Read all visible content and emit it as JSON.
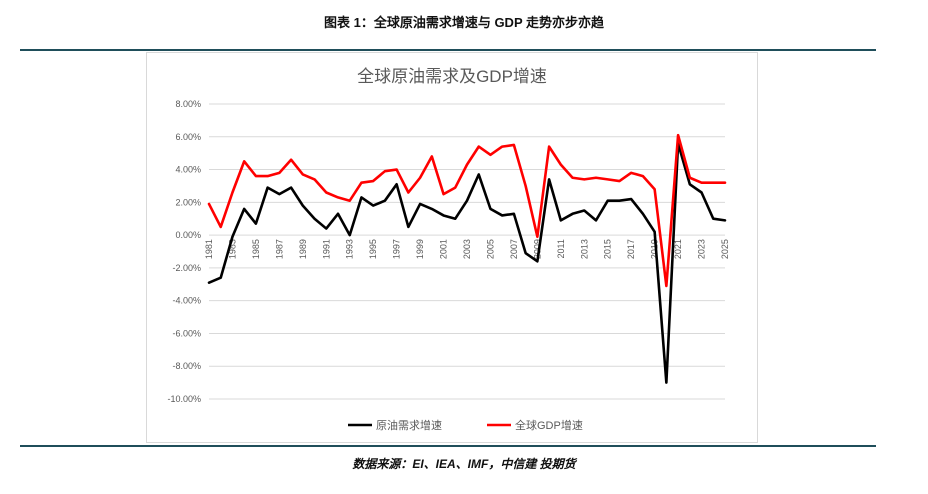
{
  "figure_title": "图表 1：全球原油需求增速与  GDP 走势亦步亦趋",
  "source": "数据来源：EI、IEA、IMF，中信建 投期货",
  "chart_data": {
    "type": "line",
    "title": "全球原油需求及GDP增速",
    "xlabel": "",
    "ylabel": "",
    "ylim": [
      -10,
      8
    ],
    "yticks": [
      "8.00%",
      "6.00%",
      "4.00%",
      "2.00%",
      "0.00%",
      "-2.00%",
      "-4.00%",
      "-6.00%",
      "-8.00%",
      "-10.00%"
    ],
    "ytick_values": [
      8,
      6,
      4,
      2,
      0,
      -2,
      -4,
      -6,
      -8,
      -10
    ],
    "x": [
      1981,
      1982,
      1983,
      1984,
      1985,
      1986,
      1987,
      1988,
      1989,
      1990,
      1991,
      1992,
      1993,
      1994,
      1995,
      1996,
      1997,
      1998,
      1999,
      2000,
      2001,
      2002,
      2003,
      2004,
      2005,
      2006,
      2007,
      2008,
      2009,
      2010,
      2011,
      2012,
      2013,
      2014,
      2015,
      2016,
      2017,
      2018,
      2019,
      2020,
      2021,
      2022,
      2023,
      2024,
      2025
    ],
    "xtick_labels": [
      "1981",
      "1983",
      "1985",
      "1987",
      "1989",
      "1991",
      "1993",
      "1995",
      "1997",
      "1999",
      "2001",
      "2003",
      "2005",
      "2007",
      "2009",
      "2011",
      "2013",
      "2015",
      "2017",
      "2019",
      "2021",
      "2023",
      "2025"
    ],
    "grid": true,
    "legend_position": "bottom",
    "series": [
      {
        "name": "原油需求增速",
        "color": "#000000",
        "values": [
          -2.9,
          -2.6,
          -0.1,
          1.6,
          0.7,
          2.9,
          2.5,
          2.9,
          1.8,
          1.0,
          0.4,
          1.3,
          0.0,
          2.3,
          1.8,
          2.1,
          3.1,
          0.5,
          1.9,
          1.6,
          1.2,
          1.0,
          2.1,
          3.7,
          1.6,
          1.2,
          1.3,
          -1.1,
          -1.6,
          3.4,
          0.9,
          1.3,
          1.5,
          0.9,
          2.1,
          2.1,
          2.2,
          1.3,
          0.2,
          -9.0,
          5.6,
          3.1,
          2.6,
          1.0,
          0.9
        ]
      },
      {
        "name": "全球GDP增速",
        "color": "#ff0000",
        "values": [
          1.9,
          0.5,
          2.6,
          4.5,
          3.6,
          3.6,
          3.8,
          4.6,
          3.7,
          3.4,
          2.6,
          2.3,
          2.1,
          3.2,
          3.3,
          3.9,
          4.0,
          2.6,
          3.5,
          4.8,
          2.5,
          2.9,
          4.3,
          5.4,
          4.9,
          5.4,
          5.5,
          3.0,
          -0.1,
          5.4,
          4.3,
          3.5,
          3.4,
          3.5,
          3.4,
          3.3,
          3.8,
          3.6,
          2.8,
          -3.1,
          6.1,
          3.5,
          3.2,
          3.2,
          3.2
        ]
      }
    ]
  }
}
